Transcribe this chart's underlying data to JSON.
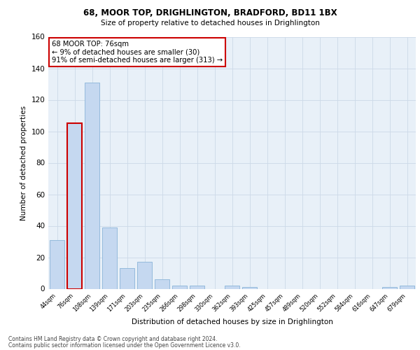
{
  "title_line1": "68, MOOR TOP, DRIGHLINGTON, BRADFORD, BD11 1BX",
  "title_line2": "Size of property relative to detached houses in Drighlington",
  "xlabel": "Distribution of detached houses by size in Drighlington",
  "ylabel": "Number of detached properties",
  "categories": [
    "44sqm",
    "76sqm",
    "108sqm",
    "139sqm",
    "171sqm",
    "203sqm",
    "235sqm",
    "266sqm",
    "298sqm",
    "330sqm",
    "362sqm",
    "393sqm",
    "425sqm",
    "457sqm",
    "489sqm",
    "520sqm",
    "552sqm",
    "584sqm",
    "616sqm",
    "647sqm",
    "679sqm"
  ],
  "values": [
    31,
    105,
    131,
    39,
    13,
    17,
    6,
    2,
    2,
    0,
    2,
    1,
    0,
    0,
    0,
    0,
    0,
    0,
    0,
    1,
    2
  ],
  "bar_color": "#c5d8f0",
  "bar_edge_color": "#8ab4d8",
  "highlight_bar_index": 1,
  "highlight_edge_color": "#cc0000",
  "ylim": [
    0,
    160
  ],
  "yticks": [
    0,
    20,
    40,
    60,
    80,
    100,
    120,
    140,
    160
  ],
  "annotation_text": "68 MOOR TOP: 76sqm\n← 9% of detached houses are smaller (30)\n91% of semi-detached houses are larger (313) →",
  "annotation_box_color": "white",
  "annotation_box_edge_color": "#cc0000",
  "grid_color": "#ccd9e8",
  "bg_color": "#e8f0f8",
  "footer_line1": "Contains HM Land Registry data © Crown copyright and database right 2024.",
  "footer_line2": "Contains public sector information licensed under the Open Government Licence v3.0."
}
